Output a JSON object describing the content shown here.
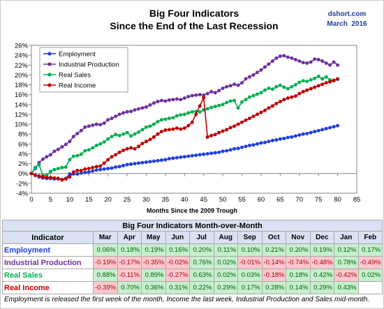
{
  "brand": "dshort.com",
  "date": "March  2016",
  "chart_data": {
    "type": "line",
    "title": "Big Four Indicators",
    "subtitle": "Since the End of the Last Recession",
    "xlabel": "Months Since the 2009 Trough",
    "ylabel": "",
    "xlim": [
      0,
      85
    ],
    "ylim": [
      -4,
      26
    ],
    "x_ticks": [
      0,
      5,
      10,
      15,
      20,
      25,
      30,
      35,
      40,
      45,
      50,
      55,
      60,
      65,
      70,
      75,
      80,
      85
    ],
    "y_ticks": [
      -4,
      -2,
      0,
      2,
      4,
      6,
      8,
      10,
      12,
      14,
      16,
      18,
      20,
      22,
      24,
      26
    ],
    "y_tick_labels": [
      "-4%",
      "-2%",
      "0%",
      "2%",
      "4%",
      "6%",
      "8%",
      "10%",
      "12%",
      "14%",
      "16%",
      "18%",
      "20%",
      "22%",
      "24%",
      "26%"
    ],
    "grid": false,
    "legend": "top-left",
    "series": [
      {
        "name": "Employment",
        "color": "#1f3fe0",
        "values": [
          0,
          -0.3,
          -0.7,
          -0.9,
          -1.0,
          -1.0,
          -1.1,
          -1.1,
          -1.2,
          -1.0,
          -0.1,
          -0.1,
          -0.1,
          0.1,
          0.2,
          0.3,
          0.5,
          0.7,
          0.8,
          0.9,
          1.0,
          1.1,
          1.3,
          1.4,
          1.6,
          1.8,
          1.9,
          2.0,
          2.1,
          2.2,
          2.3,
          2.4,
          2.5,
          2.6,
          2.7,
          2.8,
          3.0,
          3.1,
          3.2,
          3.3,
          3.4,
          3.5,
          3.6,
          3.7,
          3.8,
          3.9,
          4.0,
          4.1,
          4.2,
          4.3,
          4.5,
          4.6,
          4.8,
          5.0,
          5.1,
          5.3,
          5.5,
          5.7,
          5.8,
          6.0,
          6.2,
          6.3,
          6.5,
          6.7,
          6.8,
          7.0,
          7.1,
          7.3,
          7.4,
          7.6,
          7.8,
          8.0,
          8.1,
          8.3,
          8.5,
          8.7,
          8.9,
          9.1,
          9.3,
          9.5,
          9.7
        ]
      },
      {
        "name": "Industrial Production",
        "color": "#7030a0",
        "values": [
          0,
          1.0,
          2.2,
          2.9,
          3.4,
          3.8,
          4.5,
          4.9,
          5.4,
          5.9,
          6.5,
          7.5,
          8.1,
          8.7,
          9.4,
          9.6,
          9.8,
          10.0,
          9.9,
          10.2,
          10.9,
          11.2,
          11.6,
          12.0,
          12.3,
          12.5,
          12.6,
          12.9,
          13.1,
          13.3,
          13.5,
          13.9,
          14.3,
          14.6,
          14.8,
          14.7,
          14.9,
          15.0,
          15.1,
          15.0,
          15.3,
          15.6,
          15.8,
          15.9,
          16.0,
          15.9,
          16.2,
          16.6,
          16.4,
          16.8,
          17.3,
          17.6,
          17.8,
          18.1,
          17.9,
          18.4,
          19.2,
          19.6,
          20.0,
          20.5,
          21.0,
          21.6,
          22.2,
          22.8,
          23.4,
          23.8,
          23.9,
          23.6,
          23.4,
          23.1,
          22.8,
          22.5,
          22.4,
          22.6,
          23.2,
          23.1,
          22.8,
          22.4,
          22.0,
          22.6,
          22.0
        ]
      },
      {
        "name": "Real Sales",
        "color": "#00b050",
        "values": [
          0,
          1.2,
          1.8,
          -0.4,
          -0.3,
          0.4,
          0.8,
          1.0,
          1.2,
          1.3,
          2.8,
          3.5,
          3.6,
          3.9,
          4.6,
          4.8,
          5.2,
          5.7,
          6.0,
          6.4,
          7.0,
          7.5,
          7.9,
          7.7,
          8.0,
          8.3,
          7.6,
          8.0,
          8.4,
          8.9,
          9.4,
          9.6,
          10.0,
          10.5,
          10.9,
          11.0,
          11.2,
          11.3,
          11.7,
          11.9,
          12.0,
          12.3,
          12.5,
          12.6,
          12.5,
          12.9,
          13.1,
          13.4,
          13.6,
          13.8,
          14.0,
          14.4,
          14.7,
          14.8,
          13.3,
          14.5,
          15.0,
          15.5,
          15.8,
          16.1,
          16.4,
          16.9,
          17.3,
          17.1,
          17.6,
          17.9,
          17.5,
          17.2,
          17.6,
          18.0,
          18.5,
          18.8,
          18.7,
          19.0,
          19.3,
          19.7,
          19.2,
          19.6,
          19.0,
          18.8,
          19.1
        ]
      },
      {
        "name": "Real Income",
        "color": "#c00000",
        "values": [
          0,
          -0.4,
          -0.5,
          -0.7,
          -0.8,
          -0.8,
          -0.9,
          -1.0,
          -1.3,
          -1.1,
          -0.7,
          0.3,
          0.6,
          0.6,
          0.9,
          1.0,
          1.2,
          1.4,
          1.5,
          2.1,
          2.8,
          3.4,
          3.8,
          4.3,
          4.7,
          5.0,
          5.2,
          5.0,
          5.5,
          6.1,
          6.5,
          6.9,
          7.4,
          8.0,
          8.5,
          8.8,
          8.9,
          9.0,
          9.2,
          9.0,
          9.2,
          9.7,
          10.4,
          12.0,
          13.7,
          15.4,
          7.4,
          7.7,
          7.9,
          8.3,
          8.6,
          8.9,
          9.3,
          9.6,
          10.0,
          10.4,
          10.8,
          11.2,
          11.6,
          12.0,
          12.4,
          12.8,
          13.3,
          13.7,
          14.2,
          14.6,
          15.0,
          15.3,
          15.5,
          15.7,
          16.2,
          16.6,
          16.9,
          17.2,
          17.5,
          17.8,
          18.1,
          18.4,
          18.6,
          18.9,
          19.2
        ]
      }
    ]
  },
  "table": {
    "title": "Big Four Indicators Month-over-Month",
    "header": "Indicator",
    "months": [
      "Mar",
      "Apr",
      "May",
      "Jun",
      "Jul",
      "Aug",
      "Sep",
      "Oct",
      "Nov",
      "Dec",
      "Jan",
      "Feb"
    ],
    "rows": [
      {
        "name": "Employment",
        "color": "#1f3fe0",
        "values": [
          "0.06%",
          "0.18%",
          "0.19%",
          "0.16%",
          "0.20%",
          "0.11%",
          "0.10%",
          "0.21%",
          "0.20%",
          "0.19%",
          "0.12%",
          "0.17%"
        ]
      },
      {
        "name": "Industrial Production",
        "color": "#7030a0",
        "values": [
          "-0.19%",
          "-0.17%",
          "-0.35%",
          "-0.02%",
          "0.76%",
          "0.02%",
          "-0.01%",
          "-0.14%",
          "-0.74%",
          "-0.48%",
          "0.78%",
          "-0.49%"
        ]
      },
      {
        "name": "Real Sales",
        "color": "#00b050",
        "values": [
          "0.88%",
          "-0.11%",
          "0.89%",
          "-0.27%",
          "0.63%",
          "0.02%",
          "0.03%",
          "-0.18%",
          "0.18%",
          "0.42%",
          "-0.42%",
          "0.02%"
        ]
      },
      {
        "name": "Real Income",
        "color": "#c00000",
        "values": [
          "-0.39%",
          "0.70%",
          "0.36%",
          "0.31%",
          "0.22%",
          "0.29%",
          "0.17%",
          "0.28%",
          "0.14%",
          "0.29%",
          "0.43%",
          ""
        ]
      }
    ]
  },
  "footnote": "Employment is released the first week of the month, Income the last week, Industrial Production and Sales mid-month."
}
